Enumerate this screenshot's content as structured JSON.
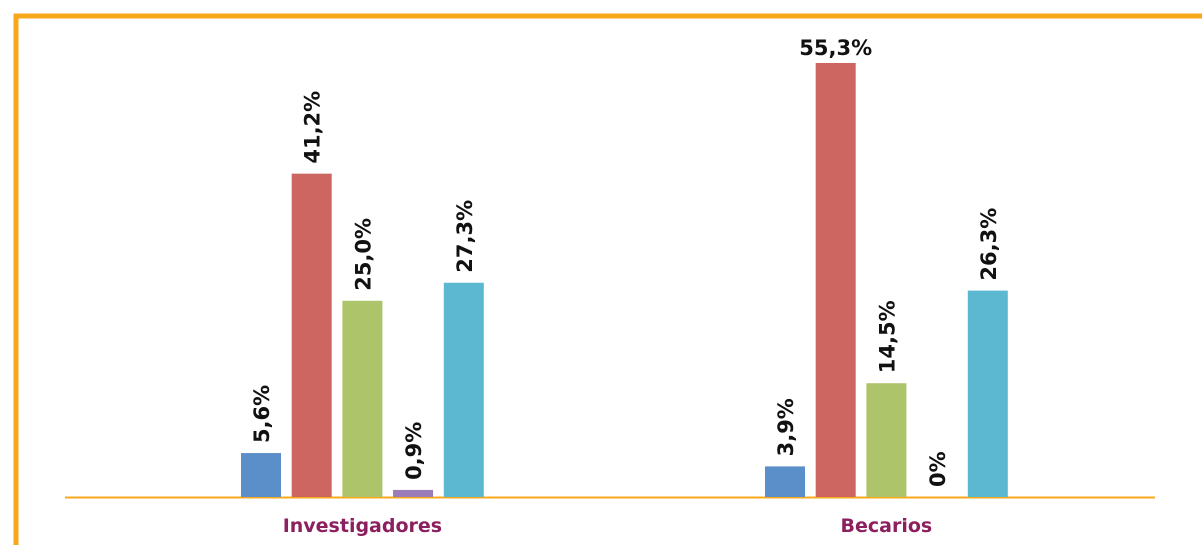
{
  "chart_data": {
    "type": "bar",
    "categories": [
      "Investigadores",
      "Becarios"
    ],
    "series": [
      {
        "color": "#5b8fc9",
        "values": [
          5.6,
          3.9
        ],
        "value_labels": [
          "5,6%",
          "3,9%"
        ]
      },
      {
        "color": "#cd6660",
        "values": [
          41.2,
          55.3
        ],
        "value_labels": [
          "41,2%",
          "55,3%"
        ]
      },
      {
        "color": "#adc46a",
        "values": [
          25.0,
          14.5
        ],
        "value_labels": [
          "25,0%",
          "14,5%"
        ]
      },
      {
        "color": "#9a7cb8",
        "values": [
          0.9,
          0
        ],
        "value_labels": [
          "0,9%",
          "0%"
        ]
      },
      {
        "color": "#5bb8d0",
        "values": [
          27.3,
          26.3
        ],
        "value_labels": [
          "27,3%",
          "26,3%"
        ]
      }
    ]
  }
}
